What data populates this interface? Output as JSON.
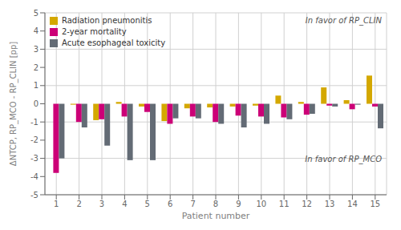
{
  "chart_data": {
    "type": "bar",
    "categories": [
      "1",
      "2",
      "3",
      "4",
      "5",
      "6",
      "7",
      "8",
      "9",
      "10",
      "11",
      "12",
      "13",
      "14",
      "15"
    ],
    "series": [
      {
        "name": "Radiation pneumonitis",
        "color": "#D4A800",
        "values": [
          0.0,
          -0.05,
          -0.9,
          0.1,
          -0.15,
          -0.95,
          -0.25,
          -0.2,
          -0.15,
          -0.1,
          0.45,
          0.1,
          0.9,
          0.2,
          1.55
        ]
      },
      {
        "name": "2-year mortality",
        "color": "#CC0077",
        "values": [
          -3.8,
          -1.0,
          -0.85,
          -0.7,
          -0.45,
          -1.1,
          -0.7,
          -1.0,
          -0.65,
          -0.7,
          -0.75,
          -0.6,
          -0.1,
          -0.3,
          -0.15
        ]
      },
      {
        "name": "Acute esophageal toxicity",
        "color": "#636B75",
        "values": [
          -3.0,
          -1.3,
          -2.3,
          -3.1,
          -3.1,
          -0.8,
          -0.8,
          -1.1,
          -1.3,
          -1.1,
          -0.85,
          -0.55,
          -0.15,
          -0.05,
          -1.35
        ]
      }
    ],
    "xlabel": "Patient number",
    "ylabel": "ΔNTCP, RP_MCO - RP_CLIN [pp]",
    "ylim": [
      -5,
      5
    ],
    "yticks": [
      -5,
      -4,
      -3,
      -2,
      -1,
      0,
      1,
      2,
      3,
      4,
      5
    ],
    "grid": true,
    "legend": "upper left",
    "annotations": [
      "In favor of RP_CLIN",
      "In favor of RP_MCO"
    ]
  }
}
